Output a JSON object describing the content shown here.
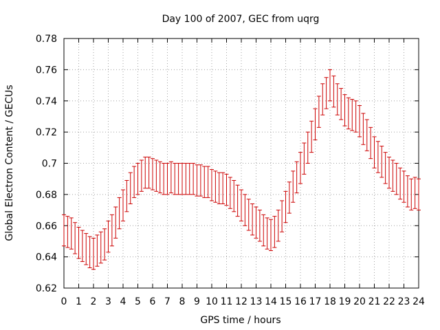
{
  "chart_data": {
    "type": "scatter",
    "title": "Day 100 of 2007, GEC from uqrg",
    "xlabel": "GPS time / hours",
    "ylabel": "Global Electron Content / GECUs",
    "xlim": [
      0,
      24
    ],
    "ylim": [
      0.62,
      0.78
    ],
    "xticks": [
      "0",
      "1",
      "2",
      "3",
      "4",
      "5",
      "6",
      "7",
      "8",
      "9",
      "10",
      "11",
      "12",
      "13",
      "14",
      "15",
      "16",
      "17",
      "18",
      "19",
      "20",
      "21",
      "22",
      "23",
      "24"
    ],
    "yticks": [
      "0.62",
      "0.64",
      "0.66",
      "0.68",
      "0.7",
      "0.72",
      "0.74",
      "0.76",
      "0.78"
    ],
    "grid": true,
    "legend": "none",
    "series_color": "#cc0000",
    "series": [
      {
        "x": [
          0,
          0.25,
          0.5,
          0.75,
          1,
          1.25,
          1.5,
          1.75,
          2,
          2.25,
          2.5,
          2.75,
          3,
          3.25,
          3.5,
          3.75,
          4,
          4.25,
          4.5,
          4.75,
          5,
          5.25,
          5.5,
          5.75,
          6,
          6.25,
          6.5,
          6.75,
          7,
          7.25,
          7.5,
          7.75,
          8,
          8.25,
          8.5,
          8.75,
          9,
          9.25,
          9.5,
          9.75,
          10,
          10.25,
          10.5,
          10.75,
          11,
          11.25,
          11.5,
          11.75,
          12,
          12.25,
          12.5,
          12.75,
          13,
          13.25,
          13.5,
          13.75,
          14,
          14.25,
          14.5,
          14.75,
          15,
          15.25,
          15.5,
          15.75,
          16,
          16.25,
          16.5,
          16.75,
          17,
          17.25,
          17.5,
          17.75,
          18,
          18.25,
          18.5,
          18.75,
          19,
          19.25,
          19.5,
          19.75,
          20,
          20.25,
          20.5,
          20.75,
          21,
          21.25,
          21.5,
          21.75,
          22,
          22.25,
          22.5,
          22.75,
          23,
          23.25,
          23.5,
          23.75,
          24
        ],
        "y": [
          0.657,
          0.656,
          0.655,
          0.652,
          0.649,
          0.647,
          0.645,
          0.643,
          0.642,
          0.644,
          0.646,
          0.648,
          0.653,
          0.657,
          0.662,
          0.668,
          0.673,
          0.679,
          0.684,
          0.688,
          0.69,
          0.692,
          0.694,
          0.694,
          0.693,
          0.692,
          0.691,
          0.69,
          0.69,
          0.691,
          0.69,
          0.69,
          0.69,
          0.69,
          0.69,
          0.69,
          0.689,
          0.689,
          0.688,
          0.688,
          0.686,
          0.685,
          0.684,
          0.684,
          0.683,
          0.681,
          0.679,
          0.676,
          0.673,
          0.67,
          0.667,
          0.664,
          0.662,
          0.66,
          0.657,
          0.655,
          0.654,
          0.656,
          0.66,
          0.666,
          0.672,
          0.678,
          0.685,
          0.691,
          0.697,
          0.703,
          0.71,
          0.717,
          0.725,
          0.733,
          0.741,
          0.745,
          0.75,
          0.746,
          0.741,
          0.738,
          0.734,
          0.732,
          0.731,
          0.73,
          0.727,
          0.722,
          0.718,
          0.713,
          0.707,
          0.704,
          0.701,
          0.697,
          0.694,
          0.692,
          0.69,
          0.687,
          0.685,
          0.682,
          0.68,
          0.681,
          0.68
        ],
        "err": [
          0.01,
          0.01,
          0.01,
          0.01,
          0.01,
          0.01,
          0.01,
          0.01,
          0.01,
          0.01,
          0.01,
          0.01,
          0.01,
          0.01,
          0.01,
          0.01,
          0.01,
          0.01,
          0.01,
          0.01,
          0.01,
          0.01,
          0.01,
          0.01,
          0.01,
          0.01,
          0.01,
          0.01,
          0.01,
          0.01,
          0.01,
          0.01,
          0.01,
          0.01,
          0.01,
          0.01,
          0.01,
          0.01,
          0.01,
          0.01,
          0.01,
          0.01,
          0.01,
          0.01,
          0.01,
          0.01,
          0.01,
          0.01,
          0.01,
          0.01,
          0.01,
          0.01,
          0.01,
          0.01,
          0.01,
          0.01,
          0.01,
          0.01,
          0.01,
          0.01,
          0.01,
          0.01,
          0.01,
          0.01,
          0.01,
          0.01,
          0.01,
          0.01,
          0.01,
          0.01,
          0.01,
          0.01,
          0.01,
          0.01,
          0.01,
          0.01,
          0.01,
          0.01,
          0.01,
          0.01,
          0.01,
          0.01,
          0.01,
          0.01,
          0.01,
          0.01,
          0.01,
          0.01,
          0.01,
          0.01,
          0.01,
          0.01,
          0.01,
          0.01,
          0.01,
          0.01,
          0.01
        ]
      }
    ]
  }
}
